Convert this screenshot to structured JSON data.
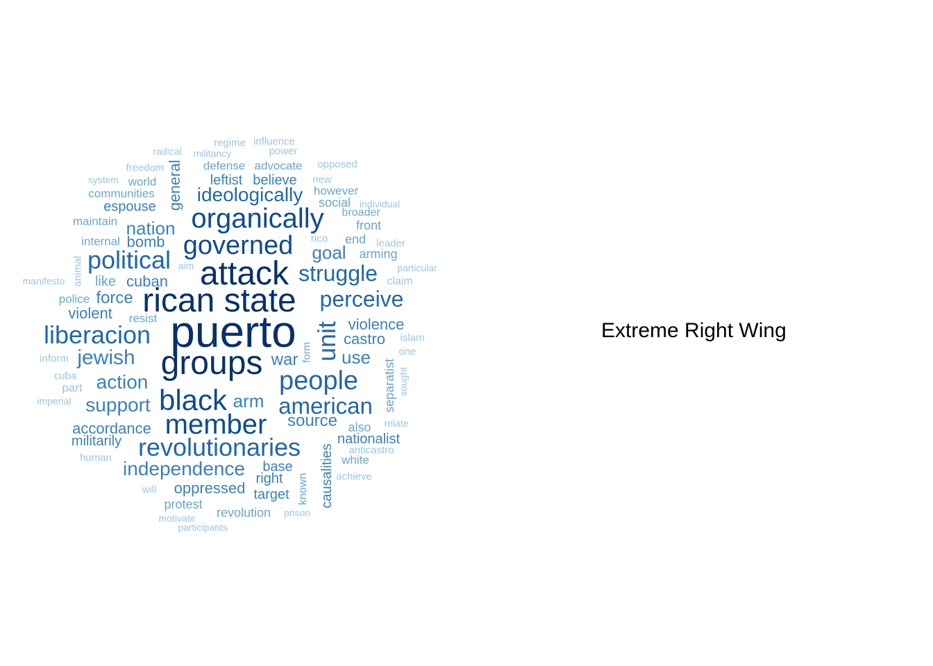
{
  "label": "Extreme Right Wing",
  "palette": {
    "darkest": "#08306b",
    "dark": "#0d4a94",
    "medium_dark": "#2166ac",
    "medium": "#3a7fc0",
    "light": "#6aa5d3",
    "lightest": "#9cc5e3"
  },
  "words": [
    {
      "text": "puerto",
      "weight": 10
    },
    {
      "text": "rican state",
      "weight": 9
    },
    {
      "text": "groups",
      "weight": 9
    },
    {
      "text": "attack",
      "weight": 9
    },
    {
      "text": "black",
      "weight": 8
    },
    {
      "text": "member",
      "weight": 8
    },
    {
      "text": "organically",
      "weight": 8
    },
    {
      "text": "governed",
      "weight": 8
    },
    {
      "text": "revolutionaries",
      "weight": 7
    },
    {
      "text": "people",
      "weight": 7
    },
    {
      "text": "unit",
      "weight": 7
    },
    {
      "text": "political",
      "weight": 7
    },
    {
      "text": "liberacion",
      "weight": 6
    },
    {
      "text": "american",
      "weight": 6
    },
    {
      "text": "perceive",
      "weight": 6
    },
    {
      "text": "struggle",
      "weight": 6
    },
    {
      "text": "ideologically",
      "weight": 6
    },
    {
      "text": "jewish",
      "weight": 5
    },
    {
      "text": "independence",
      "weight": 5
    },
    {
      "text": "support",
      "weight": 5
    },
    {
      "text": "action",
      "weight": 5
    },
    {
      "text": "nation",
      "weight": 5
    },
    {
      "text": "goal",
      "weight": 5
    },
    {
      "text": "arm",
      "weight": 5
    },
    {
      "text": "source",
      "weight": 4
    },
    {
      "text": "use",
      "weight": 4
    },
    {
      "text": "violence",
      "weight": 4
    },
    {
      "text": "castro",
      "weight": 4
    },
    {
      "text": "war",
      "weight": 4
    },
    {
      "text": "general",
      "weight": 4
    },
    {
      "text": "cuban",
      "weight": 4
    },
    {
      "text": "bomb",
      "weight": 4
    },
    {
      "text": "force",
      "weight": 4
    },
    {
      "text": "violent",
      "weight": 4
    },
    {
      "text": "accordance",
      "weight": 4
    },
    {
      "text": "militarily",
      "weight": 4
    },
    {
      "text": "oppressed",
      "weight": 4
    },
    {
      "text": "target",
      "weight": 4
    },
    {
      "text": "right",
      "weight": 4
    },
    {
      "text": "base",
      "weight": 4
    },
    {
      "text": "causalities",
      "weight": 4
    },
    {
      "text": "nationalist",
      "weight": 4
    },
    {
      "text": "leftist",
      "weight": 4
    },
    {
      "text": "believe",
      "weight": 4
    },
    {
      "text": "espouse",
      "weight": 4
    },
    {
      "text": "separatist",
      "weight": 3
    },
    {
      "text": "revolution",
      "weight": 3
    },
    {
      "text": "protest",
      "weight": 3
    },
    {
      "text": "like",
      "weight": 3
    },
    {
      "text": "end",
      "weight": 3
    },
    {
      "text": "arming",
      "weight": 3
    },
    {
      "text": "front",
      "weight": 3
    },
    {
      "text": "social",
      "weight": 3
    },
    {
      "text": "however",
      "weight": 3
    },
    {
      "text": "defense",
      "weight": 3
    },
    {
      "text": "advocate",
      "weight": 3
    },
    {
      "text": "communities",
      "weight": 3
    },
    {
      "text": "world",
      "weight": 3
    },
    {
      "text": "maintain",
      "weight": 3
    },
    {
      "text": "internal",
      "weight": 3
    },
    {
      "text": "police",
      "weight": 3
    },
    {
      "text": "resist",
      "weight": 3
    },
    {
      "text": "white",
      "weight": 3
    },
    {
      "text": "also",
      "weight": 3
    },
    {
      "text": "broader",
      "weight": 3
    },
    {
      "text": "known",
      "weight": 3
    },
    {
      "text": "form",
      "weight": 3
    },
    {
      "text": "cuba",
      "weight": 2
    },
    {
      "text": "part",
      "weight": 2
    },
    {
      "text": "inform",
      "weight": 2
    },
    {
      "text": "imperial",
      "weight": 2
    },
    {
      "text": "human",
      "weight": 2
    },
    {
      "text": "will",
      "weight": 2
    },
    {
      "text": "motivate",
      "weight": 2
    },
    {
      "text": "participants",
      "weight": 2
    },
    {
      "text": "prison",
      "weight": 2
    },
    {
      "text": "achieve",
      "weight": 2
    },
    {
      "text": "anticastro",
      "weight": 2
    },
    {
      "text": "relate",
      "weight": 2
    },
    {
      "text": "sought",
      "weight": 2
    },
    {
      "text": "one",
      "weight": 2
    },
    {
      "text": "islam",
      "weight": 2
    },
    {
      "text": "claim",
      "weight": 2
    },
    {
      "text": "particular",
      "weight": 2
    },
    {
      "text": "leader",
      "weight": 2
    },
    {
      "text": "rico",
      "weight": 2
    },
    {
      "text": "individual",
      "weight": 2
    },
    {
      "text": "new",
      "weight": 2
    },
    {
      "text": "opposed",
      "weight": 2
    },
    {
      "text": "power",
      "weight": 2
    },
    {
      "text": "influence",
      "weight": 2
    },
    {
      "text": "regime",
      "weight": 2
    },
    {
      "text": "militancy",
      "weight": 2
    },
    {
      "text": "radical",
      "weight": 2
    },
    {
      "text": "freedom",
      "weight": 2
    },
    {
      "text": "system",
      "weight": 2
    },
    {
      "text": "manifesto",
      "weight": 2
    },
    {
      "text": "animal",
      "weight": 2
    },
    {
      "text": "aim",
      "weight": 2
    }
  ]
}
